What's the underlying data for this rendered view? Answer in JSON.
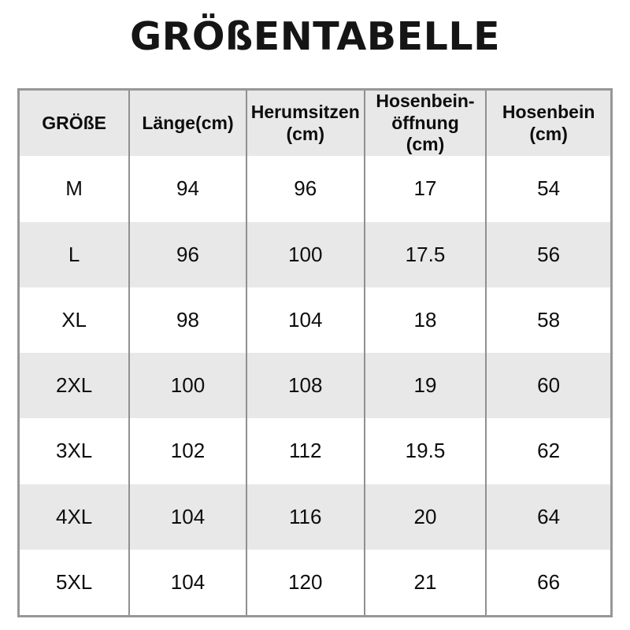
{
  "title": "GRÖßENTABELLE",
  "header_lines": [
    [
      "GRÖßE"
    ],
    [
      "Länge(cm)"
    ],
    [
      "Herumsitzen",
      "(cm)"
    ],
    [
      "Hosenbein-",
      "öffnung",
      "(cm)"
    ],
    [
      "Hosenbein",
      "(cm)"
    ]
  ],
  "chart_data": {
    "type": "table",
    "title": "GRÖßENTABELLE",
    "columns": [
      "GRÖßE",
      "Länge(cm)",
      "Herumsitzen (cm)",
      "Hosenbein-öffnung (cm)",
      "Hosenbein (cm)"
    ],
    "rows": [
      [
        "M",
        94,
        96,
        17,
        54
      ],
      [
        "L",
        96,
        100,
        17.5,
        56
      ],
      [
        "XL",
        98,
        104,
        18,
        58
      ],
      [
        "2XL",
        100,
        108,
        19,
        60
      ],
      [
        "3XL",
        102,
        112,
        19.5,
        62
      ],
      [
        "4XL",
        104,
        116,
        20,
        64
      ],
      [
        "5XL",
        104,
        120,
        21,
        66
      ]
    ]
  },
  "colors": {
    "stripe": "#e8e8e8",
    "border": "#979797",
    "divider": "#909090",
    "text": "#0d0d0d"
  }
}
